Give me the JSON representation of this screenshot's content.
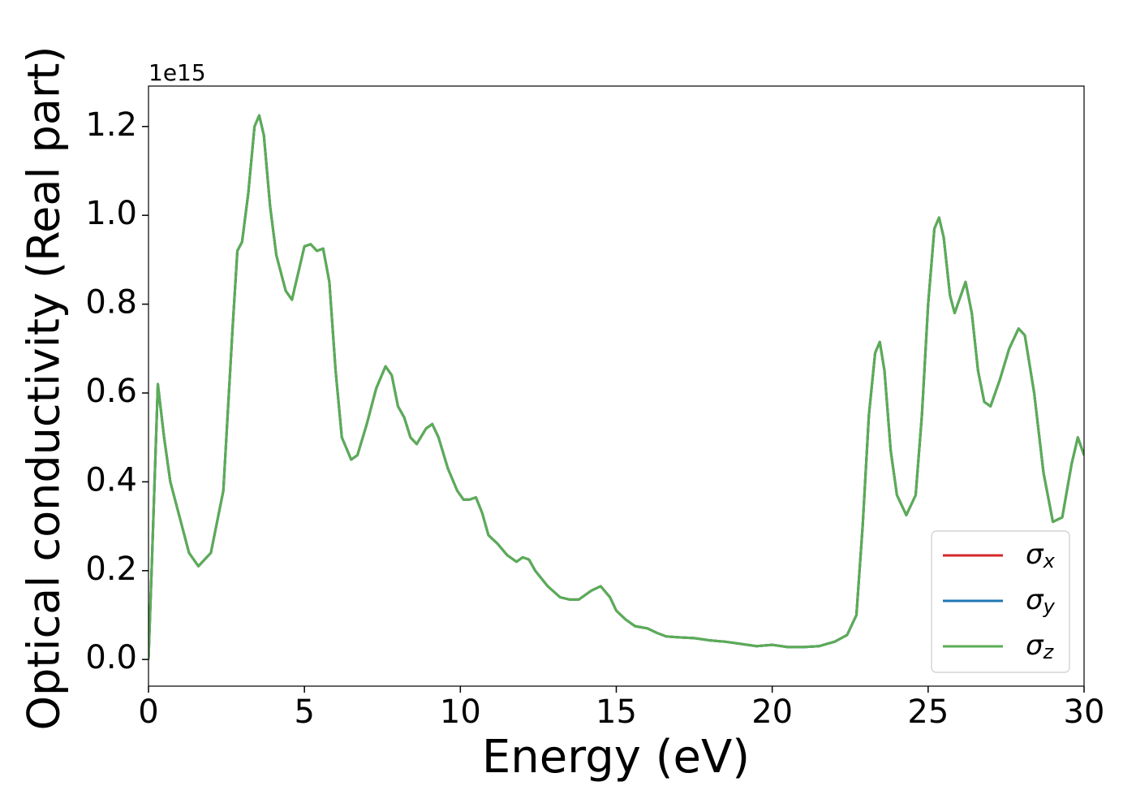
{
  "chart_data": {
    "type": "line",
    "x_label": "Energy (eV)",
    "y_label": "Optical conductivity (Real part)",
    "y_offset_label": "1e15",
    "x": [
      0,
      0.1,
      0.3,
      0.5,
      0.7,
      1.0,
      1.3,
      1.6,
      2.0,
      2.4,
      2.7,
      2.85,
      3.0,
      3.2,
      3.4,
      3.55,
      3.7,
      3.9,
      4.1,
      4.4,
      4.6,
      4.8,
      5.0,
      5.2,
      5.4,
      5.6,
      5.8,
      6.0,
      6.2,
      6.5,
      6.7,
      7.0,
      7.3,
      7.6,
      7.8,
      8.0,
      8.2,
      8.4,
      8.6,
      8.9,
      9.1,
      9.3,
      9.6,
      9.9,
      10.1,
      10.3,
      10.5,
      10.7,
      10.9,
      11.2,
      11.5,
      11.8,
      12.0,
      12.2,
      12.4,
      12.8,
      13.2,
      13.5,
      13.8,
      14.2,
      14.5,
      14.8,
      15.0,
      15.3,
      15.6,
      16.0,
      16.3,
      16.6,
      17.0,
      17.5,
      18.0,
      18.5,
      19.0,
      19.5,
      20.0,
      20.5,
      21.0,
      21.5,
      22.0,
      22.4,
      22.7,
      22.9,
      23.1,
      23.3,
      23.45,
      23.6,
      23.8,
      24.0,
      24.3,
      24.6,
      24.8,
      25.0,
      25.2,
      25.35,
      25.5,
      25.7,
      25.85,
      26.0,
      26.2,
      26.4,
      26.6,
      26.8,
      27.0,
      27.3,
      27.6,
      27.9,
      28.1,
      28.4,
      28.7,
      29.0,
      29.3,
      29.6,
      29.8,
      30.0
    ],
    "series": [
      {
        "name": "σx",
        "color": "#d62728",
        "values": [
          0,
          0.2,
          0.62,
          0.5,
          0.4,
          0.32,
          0.24,
          0.21,
          0.24,
          0.38,
          0.75,
          0.92,
          0.94,
          1.05,
          1.2,
          1.225,
          1.18,
          1.02,
          0.91,
          0.83,
          0.81,
          0.87,
          0.93,
          0.935,
          0.92,
          0.925,
          0.85,
          0.65,
          0.5,
          0.45,
          0.46,
          0.53,
          0.61,
          0.66,
          0.64,
          0.57,
          0.545,
          0.5,
          0.485,
          0.52,
          0.53,
          0.5,
          0.43,
          0.38,
          0.36,
          0.36,
          0.365,
          0.33,
          0.28,
          0.26,
          0.235,
          0.22,
          0.23,
          0.225,
          0.2,
          0.165,
          0.14,
          0.135,
          0.135,
          0.155,
          0.165,
          0.14,
          0.11,
          0.09,
          0.075,
          0.07,
          0.06,
          0.052,
          0.05,
          0.048,
          0.043,
          0.04,
          0.035,
          0.03,
          0.033,
          0.028,
          0.028,
          0.03,
          0.04,
          0.055,
          0.1,
          0.3,
          0.55,
          0.69,
          0.715,
          0.65,
          0.47,
          0.37,
          0.325,
          0.37,
          0.55,
          0.8,
          0.97,
          0.995,
          0.95,
          0.82,
          0.78,
          0.81,
          0.85,
          0.78,
          0.65,
          0.58,
          0.57,
          0.63,
          0.7,
          0.745,
          0.73,
          0.6,
          0.42,
          0.31,
          0.32,
          0.44,
          0.5,
          0.46
        ]
      },
      {
        "name": "σy",
        "color": "#1f77b4",
        "values": [
          0,
          0.2,
          0.62,
          0.5,
          0.4,
          0.32,
          0.24,
          0.21,
          0.24,
          0.38,
          0.75,
          0.92,
          0.94,
          1.05,
          1.2,
          1.225,
          1.18,
          1.02,
          0.91,
          0.83,
          0.81,
          0.87,
          0.93,
          0.935,
          0.92,
          0.925,
          0.85,
          0.65,
          0.5,
          0.45,
          0.46,
          0.53,
          0.61,
          0.66,
          0.64,
          0.57,
          0.545,
          0.5,
          0.485,
          0.52,
          0.53,
          0.5,
          0.43,
          0.38,
          0.36,
          0.36,
          0.365,
          0.33,
          0.28,
          0.26,
          0.235,
          0.22,
          0.23,
          0.225,
          0.2,
          0.165,
          0.14,
          0.135,
          0.135,
          0.155,
          0.165,
          0.14,
          0.11,
          0.09,
          0.075,
          0.07,
          0.06,
          0.052,
          0.05,
          0.048,
          0.043,
          0.04,
          0.035,
          0.03,
          0.033,
          0.028,
          0.028,
          0.03,
          0.04,
          0.055,
          0.1,
          0.3,
          0.55,
          0.69,
          0.715,
          0.65,
          0.47,
          0.37,
          0.325,
          0.37,
          0.55,
          0.8,
          0.97,
          0.995,
          0.95,
          0.82,
          0.78,
          0.81,
          0.85,
          0.78,
          0.65,
          0.58,
          0.57,
          0.63,
          0.7,
          0.745,
          0.73,
          0.6,
          0.42,
          0.31,
          0.32,
          0.44,
          0.5,
          0.46
        ]
      },
      {
        "name": "σz",
        "color": "#5aad55",
        "values": [
          0,
          0.2,
          0.62,
          0.5,
          0.4,
          0.32,
          0.24,
          0.21,
          0.24,
          0.38,
          0.75,
          0.92,
          0.94,
          1.05,
          1.2,
          1.225,
          1.18,
          1.02,
          0.91,
          0.83,
          0.81,
          0.87,
          0.93,
          0.935,
          0.92,
          0.925,
          0.85,
          0.65,
          0.5,
          0.45,
          0.46,
          0.53,
          0.61,
          0.66,
          0.64,
          0.57,
          0.545,
          0.5,
          0.485,
          0.52,
          0.53,
          0.5,
          0.43,
          0.38,
          0.36,
          0.36,
          0.365,
          0.33,
          0.28,
          0.26,
          0.235,
          0.22,
          0.23,
          0.225,
          0.2,
          0.165,
          0.14,
          0.135,
          0.135,
          0.155,
          0.165,
          0.14,
          0.11,
          0.09,
          0.075,
          0.07,
          0.06,
          0.052,
          0.05,
          0.048,
          0.043,
          0.04,
          0.035,
          0.03,
          0.033,
          0.028,
          0.028,
          0.03,
          0.04,
          0.055,
          0.1,
          0.3,
          0.55,
          0.69,
          0.715,
          0.65,
          0.47,
          0.37,
          0.325,
          0.37,
          0.55,
          0.8,
          0.97,
          0.995,
          0.95,
          0.82,
          0.78,
          0.81,
          0.85,
          0.78,
          0.65,
          0.58,
          0.57,
          0.63,
          0.7,
          0.745,
          0.73,
          0.6,
          0.42,
          0.31,
          0.32,
          0.44,
          0.5,
          0.46
        ]
      }
    ],
    "xlim": [
      0,
      30
    ],
    "ylim": [
      -0.06,
      1.291
    ],
    "xticks": [
      0,
      5,
      10,
      15,
      20,
      25,
      30
    ],
    "yticks": [
      {
        "value": 0,
        "label": "0.0"
      },
      0.2,
      0.4,
      0.6,
      0.8,
      {
        "value": 1,
        "label": "1.0"
      },
      {
        "value": 1.2,
        "label": "1.2"
      }
    ],
    "legend": "lower right",
    "grid": false
  }
}
